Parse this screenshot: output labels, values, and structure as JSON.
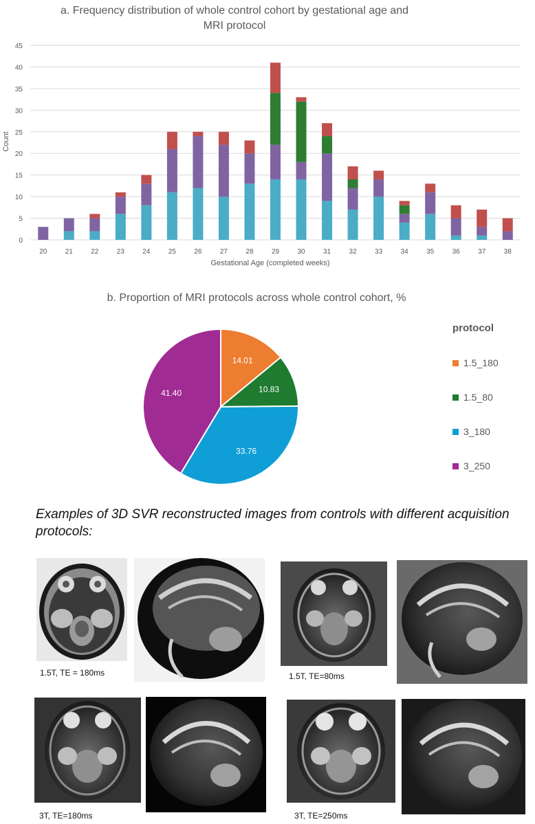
{
  "chart_data": [
    {
      "type": "bar",
      "stacked": true,
      "title": "a. Frequency distribution of whole control cohort by gestational age and MRI protocol",
      "xlabel": "Gestational Age (completed weeks)",
      "ylabel": "Count",
      "ylim": [
        0,
        45
      ],
      "yticks": [
        0,
        5,
        10,
        15,
        20,
        25,
        30,
        35,
        40,
        45
      ],
      "grid": true,
      "categories": [
        "20",
        "21",
        "22",
        "23",
        "24",
        "25",
        "26",
        "27",
        "28",
        "29",
        "30",
        "31",
        "32",
        "33",
        "34",
        "35",
        "36",
        "37",
        "38"
      ],
      "series": [
        {
          "color": "#4bacc6",
          "values": [
            0,
            2,
            2,
            6,
            8,
            11,
            12,
            10,
            13,
            14,
            14,
            9,
            7,
            10,
            4,
            6,
            1,
            1,
            0
          ]
        },
        {
          "color": "#8064a2",
          "values": [
            3,
            3,
            3,
            4,
            5,
            10,
            12,
            12,
            7,
            8,
            4,
            11,
            5,
            4,
            2,
            5,
            4,
            2,
            2
          ]
        },
        {
          "color": "#2e7d32",
          "values": [
            0,
            0,
            0,
            0,
            0,
            0,
            0,
            0,
            0,
            12,
            14,
            4,
            2,
            0,
            2,
            0,
            0,
            0,
            0
          ]
        },
        {
          "color": "#c0504d",
          "values": [
            0,
            0,
            1,
            1,
            2,
            4,
            1,
            3,
            3,
            7,
            1,
            3,
            3,
            2,
            1,
            2,
            3,
            4,
            3
          ]
        }
      ]
    },
    {
      "type": "pie",
      "title": "b. Proportion of MRI protocols across whole control cohort, %",
      "legend_title": "protocol",
      "legend_position": "right",
      "slices": [
        {
          "label": "1.5_180",
          "value": 14.01,
          "color": "#ed7d31"
        },
        {
          "label": "1.5_80",
          "value": 10.83,
          "color": "#1e7b30"
        },
        {
          "label": "3_180",
          "value": 33.76,
          "color": "#0f9ed5"
        },
        {
          "label": "3_250",
          "value": 41.4,
          "color": "#a02b93"
        }
      ]
    }
  ],
  "examples": {
    "title": "Examples of 3D SVR reconstructed images from controls with different acquisition protocols:",
    "captions": [
      "1.5T, TE = 180ms",
      "1.5T, TE=80ms",
      "3T, TE=180ms",
      "3T, TE=250ms"
    ]
  }
}
